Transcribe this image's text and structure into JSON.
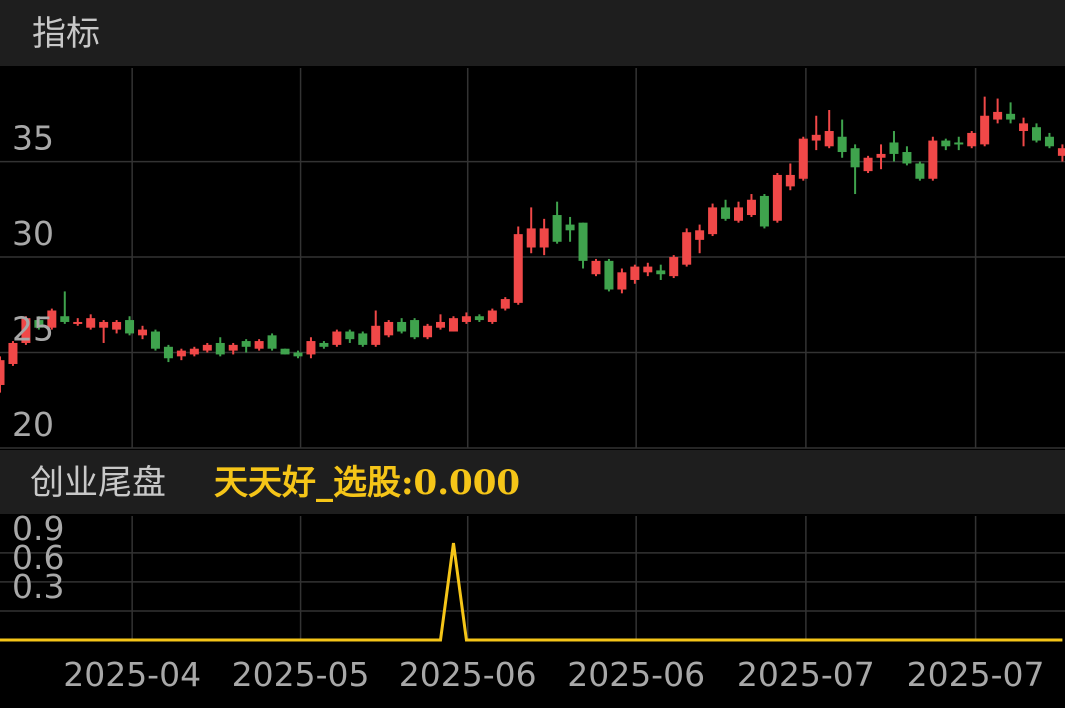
{
  "header": {
    "title": "指标"
  },
  "chart_data": [
    {
      "type": "candlestick",
      "up_color": "#f04848",
      "down_color": "#3fa34d",
      "open": [
        23.3,
        24.4,
        25.5,
        26.7,
        26.3,
        26.9,
        26.5,
        26.3,
        26.3,
        26.2,
        26.7,
        25.9,
        26.1,
        25.3,
        24.8,
        24.9,
        25.1,
        25.5,
        25.1,
        25.6,
        25.2,
        25.9,
        25.2,
        25.0,
        24.9,
        25.5,
        25.4,
        26.1,
        26.0,
        25.4,
        25.9,
        26.6,
        26.7,
        25.8,
        26.3,
        26.1,
        26.6,
        26.9,
        26.6,
        27.3,
        27.6,
        30.5,
        30.5,
        32.2,
        31.7,
        31.8,
        29.1,
        29.8,
        28.3,
        28.8,
        29.2,
        29.3,
        29.0,
        29.6,
        30.9,
        31.2,
        32.6,
        31.9,
        32.2,
        33.2,
        31.9,
        33.7,
        34.1,
        36.1,
        35.8,
        36.3,
        35.7,
        34.5,
        35.2,
        36.0,
        35.5,
        34.9,
        34.1,
        36.1,
        36.0,
        35.8,
        35.9,
        37.2,
        37.5,
        36.6,
        36.8,
        36.3,
        35.3
      ],
      "close": [
        24.6,
        25.5,
        26.8,
        26.3,
        27.2,
        26.6,
        26.6,
        26.8,
        26.6,
        26.6,
        26.0,
        26.2,
        25.2,
        24.7,
        25.1,
        25.2,
        25.4,
        24.9,
        25.4,
        25.3,
        25.6,
        25.2,
        24.9,
        24.8,
        25.6,
        25.3,
        26.1,
        25.7,
        25.4,
        26.4,
        26.6,
        26.1,
        25.8,
        26.4,
        26.6,
        26.8,
        26.9,
        26.7,
        27.2,
        27.8,
        31.2,
        31.5,
        31.5,
        30.8,
        31.4,
        29.8,
        29.8,
        28.3,
        29.2,
        29.5,
        29.5,
        29.1,
        30.0,
        31.3,
        31.4,
        32.6,
        32.0,
        32.6,
        33.0,
        31.6,
        34.3,
        34.3,
        36.2,
        36.4,
        36.6,
        35.5,
        34.7,
        35.2,
        35.4,
        35.4,
        34.9,
        34.1,
        36.1,
        35.8,
        35.9,
        36.5,
        37.4,
        37.6,
        37.2,
        37.0,
        36.1,
        35.8,
        35.7
      ],
      "low": [
        22.9,
        24.3,
        25.4,
        26.2,
        26.2,
        26.5,
        26.4,
        26.2,
        25.5,
        26.0,
        25.9,
        25.7,
        25.1,
        24.5,
        24.6,
        24.8,
        25.0,
        24.8,
        24.9,
        25.0,
        25.1,
        25.1,
        24.9,
        24.7,
        24.7,
        25.2,
        25.3,
        25.5,
        25.3,
        25.3,
        25.8,
        26.0,
        25.7,
        25.7,
        26.2,
        26.1,
        26.5,
        26.6,
        26.5,
        27.2,
        27.5,
        30.2,
        30.1,
        30.7,
        30.8,
        29.4,
        29.0,
        28.2,
        28.1,
        28.6,
        29.0,
        28.8,
        28.9,
        29.5,
        30.2,
        31.1,
        31.9,
        31.8,
        32.1,
        31.5,
        31.8,
        33.5,
        34.0,
        35.6,
        35.7,
        35.2,
        33.3,
        34.4,
        34.6,
        35.0,
        34.8,
        34.0,
        34.0,
        35.6,
        35.6,
        35.7,
        35.8,
        37.0,
        37.0,
        35.8,
        36.0,
        35.7,
        35.0
      ],
      "high": [
        24.8,
        25.6,
        26.9,
        26.9,
        27.3,
        28.2,
        26.8,
        27.0,
        26.7,
        26.7,
        26.9,
        26.4,
        26.2,
        25.4,
        25.2,
        25.3,
        25.5,
        25.8,
        25.5,
        25.7,
        25.7,
        26.0,
        25.2,
        25.1,
        25.8,
        25.6,
        26.2,
        26.2,
        26.1,
        27.2,
        26.7,
        26.8,
        26.8,
        26.5,
        27.0,
        26.9,
        27.1,
        27.0,
        27.3,
        27.9,
        31.6,
        32.6,
        32.0,
        32.9,
        32.1,
        31.8,
        29.9,
        29.9,
        29.4,
        29.6,
        29.7,
        29.6,
        30.1,
        31.5,
        31.7,
        32.8,
        33.0,
        32.9,
        33.3,
        33.3,
        34.4,
        34.9,
        36.3,
        37.4,
        37.7,
        37.2,
        35.9,
        35.3,
        35.9,
        36.6,
        35.8,
        35.0,
        36.3,
        36.2,
        36.3,
        36.6,
        38.4,
        38.3,
        38.1,
        37.3,
        37.0,
        36.5,
        35.9
      ],
      "xlim": [
        0,
        82.2
      ],
      "ylim": [
        20,
        39.9
      ],
      "yticks": [
        20,
        25,
        30,
        35
      ],
      "grid": true
    },
    {
      "type": "line",
      "title": "创业尾盘",
      "legend_text": "天天好_选股:0.000",
      "color": "#f5c518",
      "values": [
        0,
        0,
        0,
        0,
        0,
        0,
        0,
        0,
        0,
        0,
        0,
        0,
        0,
        0,
        0,
        0,
        0,
        0,
        0,
        0,
        0,
        0,
        0,
        0,
        0,
        0,
        0,
        0,
        0,
        0,
        0,
        0,
        0,
        0,
        0,
        1,
        0,
        0,
        0,
        0,
        0,
        0,
        0,
        0,
        0,
        0,
        0,
        0,
        0,
        0,
        0,
        0,
        0,
        0,
        0,
        0,
        0,
        0,
        0,
        0,
        0,
        0,
        0,
        0,
        0,
        0,
        0,
        0,
        0,
        0,
        0,
        0,
        0,
        0,
        0,
        0,
        0,
        0,
        0,
        0,
        0,
        0,
        0
      ],
      "xlim": [
        0,
        82.2
      ],
      "ylim": [
        0,
        1.28
      ],
      "yticks": [
        0.3,
        0.6,
        0.9
      ],
      "xticks": [
        {
          "value": 10.2,
          "label": "2025-04"
        },
        {
          "value": 23.2,
          "label": "2025-05"
        },
        {
          "value": 36.1,
          "label": "2025-06"
        },
        {
          "value": 49.1,
          "label": "2025-06"
        },
        {
          "value": 62.2,
          "label": "2025-07"
        },
        {
          "value": 75.3,
          "label": "2025-07"
        }
      ],
      "grid": true
    }
  ]
}
